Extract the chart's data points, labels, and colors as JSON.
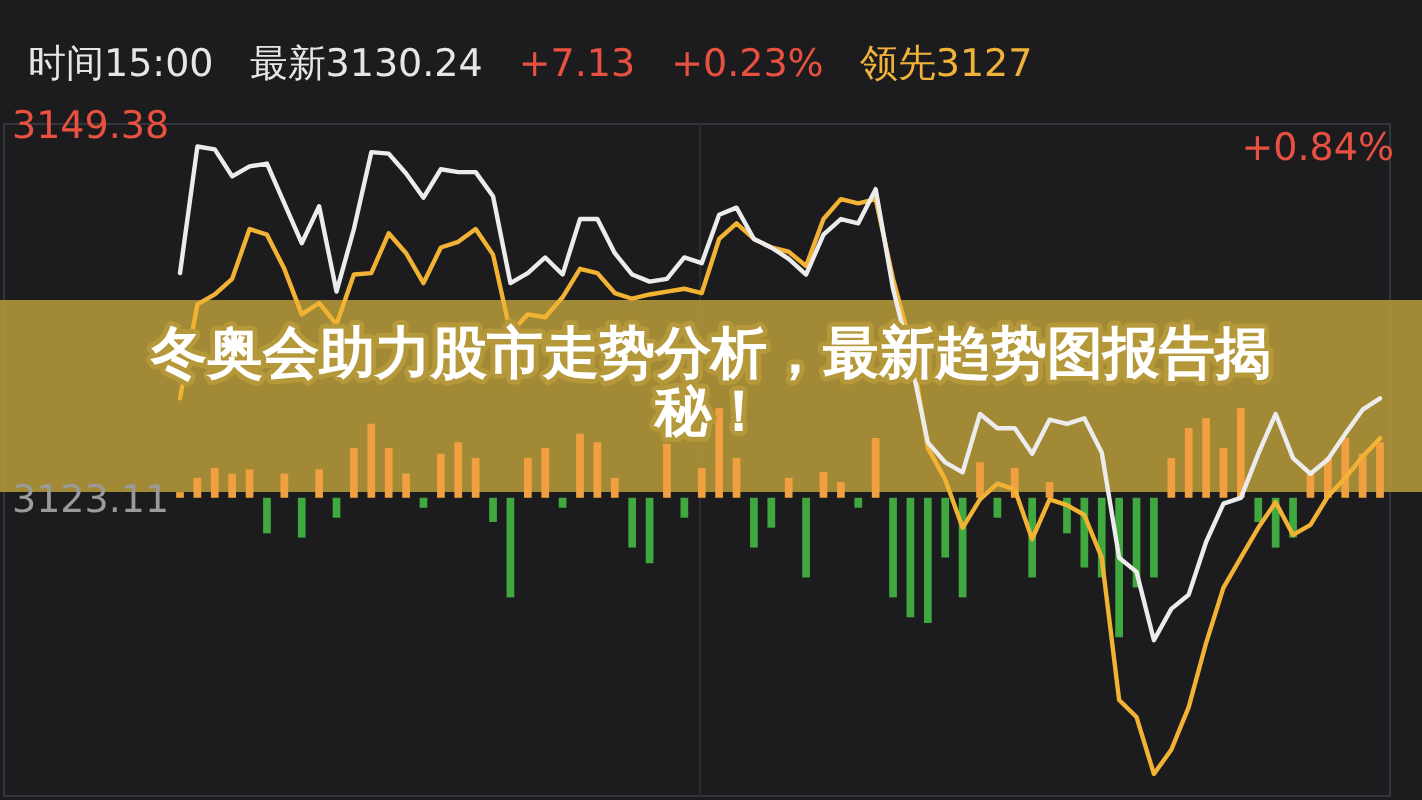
{
  "chart_data": {
    "type": "line",
    "title": "冬奥会助力股市走势分析，最新趋势图报告揭秘！",
    "annotations": [
      "时间15:00",
      "最新3130.24",
      "+7.13",
      "+0.23%",
      "领先3127",
      "+0.84%"
    ],
    "categories": [
      null,
      null,
      null,
      null,
      null,
      null,
      null,
      null,
      null,
      null,
      null,
      null,
      null,
      null,
      null,
      null,
      null,
      null,
      null,
      null,
      null,
      null,
      null,
      null,
      null,
      null,
      null,
      null,
      null,
      null,
      null,
      null,
      null,
      null,
      null,
      null,
      null,
      null,
      null,
      null,
      null,
      null,
      null,
      null,
      null,
      null,
      null,
      null,
      null,
      null,
      null,
      null,
      null,
      null,
      null,
      null,
      null,
      null,
      null,
      null,
      null,
      null,
      null,
      null,
      null,
      null,
      null,
      null,
      null,
      null
    ],
    "ylim": [
      3102.15,
      3149.38
    ],
    "yticks": [
      3149.38,
      3123.11
    ],
    "series": [
      {
        "type": "bar",
        "colors": [
          "#f0a040",
          "#f0a040",
          "#f0a040",
          "#f0a040",
          "#f0a040",
          "#3fa83f",
          "#f0a040",
          "#3fa83f",
          "#f0a040",
          "#3fa83f",
          "#f0a040",
          "#f0a040",
          "#f0a040",
          "#f0a040",
          "#3fa83f",
          "#f0a040",
          "#f0a040",
          "#f0a040",
          "#3fa83f",
          "#3fa83f",
          "#f0a040",
          "#f0a040",
          "#3fa83f",
          "#f0a040",
          "#f0a040",
          "#f0a040",
          "#3fa83f",
          "#3fa83f",
          "#f0a040",
          "#3fa83f",
          "#f0a040",
          "#f0a040",
          "#f0a040",
          "#3fa83f",
          "#3fa83f",
          "#f0a040",
          "#3fa83f",
          "#f0a040",
          "#f0a040",
          "#3fa83f",
          "#f0a040",
          "#3fa83f",
          "#3fa83f",
          "#3fa83f",
          "#3fa83f",
          "#3fa83f",
          "#f0a040",
          "#3fa83f",
          "#f0a040",
          "#3fa83f",
          "#f0a040",
          "#3fa83f",
          "#3fa83f",
          "#3fa83f",
          "#3fa83f",
          "#3fa83f",
          "#3fa83f",
          "#f0a040",
          "#f0a040",
          "#f0a040",
          "#f0a040",
          "#f0a040",
          "#3fa83f",
          "#3fa83f",
          "#3fa83f",
          "#f0a040",
          "#f0a040",
          "#f0a040",
          "#f0a040",
          "#f0a040"
        ],
        "base": [
          3123.11,
          3123.11,
          3123.11,
          3123.11,
          3123.11,
          3123.11,
          3123.11,
          3123.11,
          3123.11,
          3123.11,
          3123.11,
          3123.11,
          3123.11,
          3123.11,
          3123.11,
          3123.11,
          3123.11,
          3123.11,
          3123.11,
          3123.11,
          3123.11,
          3123.11,
          3123.11,
          3123.11,
          3123.11,
          3123.11,
          3123.11,
          3123.11,
          3123.11,
          3123.11,
          3123.11,
          3123.11,
          3123.11,
          3123.11,
          3123.11,
          3123.11,
          3123.11,
          3123.11,
          3123.11,
          3123.11,
          3123.11,
          3123.11,
          3123.11,
          3123.11,
          3123.11,
          3123.11,
          3123.11,
          3123.11,
          3123.11,
          3123.11,
          3123.11,
          3123.11,
          3123.11,
          3123.11,
          3123.11,
          3123.11,
          3123.11,
          3123.11,
          3123.11,
          3123.11,
          3123.11,
          3123.11,
          3123.11,
          3123.11,
          3123.11,
          3123.11,
          3123.11,
          3123.11,
          3123.11,
          3123.11
        ],
        "values": [
          0.4,
          1.4,
          2.1,
          1.7,
          2.0,
          -2.5,
          1.7,
          -2.8,
          2.0,
          -1.4,
          3.5,
          5.2,
          3.5,
          1.7,
          -0.7,
          3.1,
          3.9,
          2.8,
          -1.7,
          -7.0,
          2.8,
          3.5,
          -0.7,
          4.5,
          3.9,
          1.4,
          -3.5,
          -4.6,
          3.8,
          -1.4,
          2.1,
          6.3,
          2.8,
          -3.5,
          -2.1,
          1.4,
          -5.6,
          1.8,
          1.1,
          -0.7,
          4.2,
          -7.0,
          -8.4,
          -8.8,
          -4.2,
          -7.0,
          2.5,
          -1.4,
          2.1,
          -5.6,
          1.1,
          -2.5,
          -4.9,
          -5.6,
          -9.8,
          -6.3,
          -5.6,
          2.8,
          4.9,
          5.6,
          3.5,
          6.3,
          -1.7,
          -3.5,
          -2.8,
          1.7,
          2.8,
          4.2,
          3.1,
          3.9
        ]
      },
      {
        "type": "line",
        "color": "#f2b233",
        "values": [
          3130.1,
          3136.7,
          3137.4,
          3138.5,
          3142.0,
          3141.6,
          3139.2,
          3136.0,
          3136.8,
          3135.3,
          3138.8,
          3138.9,
          3141.7,
          3140.3,
          3138.2,
          3140.7,
          3141.1,
          3142.0,
          3140.2,
          3134.7,
          3136.0,
          3135.8,
          3137.2,
          3139.2,
          3138.9,
          3137.5,
          3137.1,
          3137.4,
          3137.6,
          3137.8,
          3137.5,
          3141.3,
          3142.4,
          3141.3,
          3140.7,
          3140.4,
          3139.4,
          3142.7,
          3144.1,
          3143.8,
          3144.1,
          3138.5,
          3134.0,
          3126.6,
          3124.4,
          3121.0,
          3123.0,
          3124.1,
          3123.7,
          3120.2,
          3123.0,
          3122.6,
          3121.9,
          3118.9,
          3108.9,
          3107.7,
          3103.7,
          3105.4,
          3108.4,
          3112.9,
          3116.8,
          3118.9,
          3121.0,
          3122.8,
          3120.5,
          3121.2,
          3123.2,
          3124.5,
          3126.0,
          3127.3
        ]
      },
      {
        "type": "line",
        "color": "#ececec",
        "values": [
          3138.9,
          3147.8,
          3147.6,
          3145.7,
          3146.4,
          3146.6,
          3143.8,
          3141.0,
          3143.6,
          3137.6,
          3142.0,
          3147.4,
          3147.3,
          3145.9,
          3144.2,
          3146.2,
          3146.0,
          3146.0,
          3144.3,
          3138.2,
          3138.9,
          3140.0,
          3138.8,
          3142.7,
          3142.7,
          3140.3,
          3138.8,
          3138.3,
          3138.5,
          3140.0,
          3139.6,
          3143.0,
          3143.5,
          3141.3,
          3140.7,
          3139.9,
          3138.8,
          3141.6,
          3142.7,
          3142.4,
          3144.8,
          3137.8,
          3132.9,
          3127.0,
          3125.6,
          3124.9,
          3129.0,
          3128.0,
          3128.0,
          3126.2,
          3128.6,
          3128.3,
          3128.7,
          3126.3,
          3118.9,
          3117.9,
          3113.1,
          3115.3,
          3116.3,
          3120.0,
          3122.7,
          3123.1,
          3126.2,
          3129.0,
          3125.9,
          3124.8,
          3125.8,
          3127.6,
          3129.3,
          3130.1
        ]
      }
    ]
  }
}
